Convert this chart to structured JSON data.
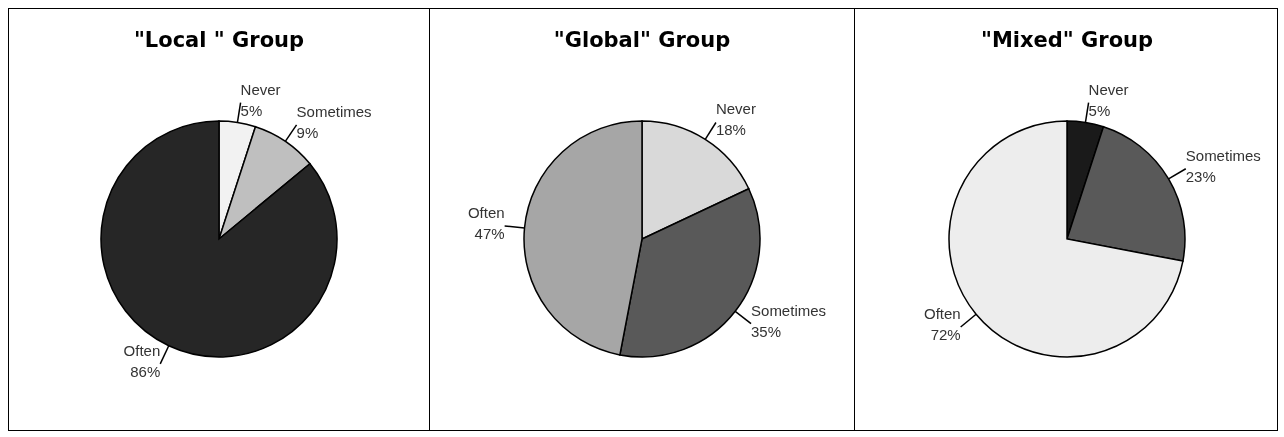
{
  "chart_data": [
    {
      "type": "pie",
      "title": "\"Local \" Group",
      "categories": [
        "Never",
        "Sometimes",
        "Often"
      ],
      "values": [
        5,
        9,
        86
      ],
      "value_labels": [
        "5%",
        "9%",
        "86%"
      ],
      "colors": [
        "#f2f2f2",
        "#bfbfbf",
        "#262626"
      ]
    },
    {
      "type": "pie",
      "title": "\"Global\" Group",
      "categories": [
        "Never",
        "Sometimes",
        "Often"
      ],
      "values": [
        18,
        35,
        47
      ],
      "value_labels": [
        "18%",
        "35%",
        "47%"
      ],
      "colors": [
        "#d9d9d9",
        "#595959",
        "#a6a6a6"
      ]
    },
    {
      "type": "pie",
      "title": "\"Mixed\" Group",
      "categories": [
        "Never",
        "Sometimes",
        "Often"
      ],
      "values": [
        5,
        23,
        72
      ],
      "value_labels": [
        "5%",
        "23%",
        "72%"
      ],
      "colors": [
        "#1a1a1a",
        "#595959",
        "#ededed"
      ]
    }
  ]
}
